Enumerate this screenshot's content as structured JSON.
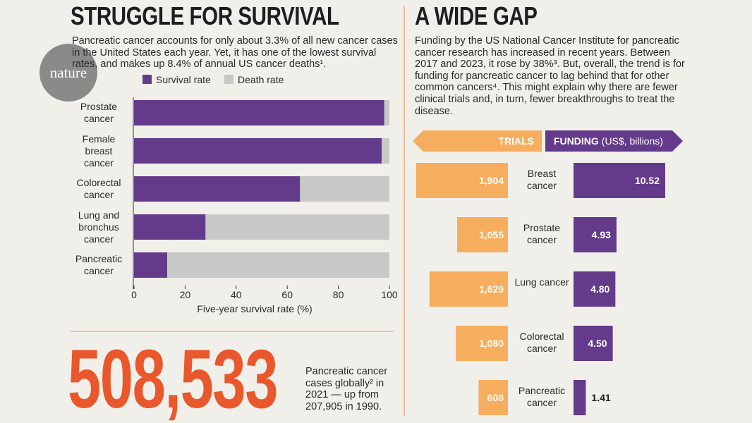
{
  "logo": "nature",
  "left": {
    "title": "STRUGGLE FOR SURVIVAL",
    "intro": "Pancreatic cancer accounts for only about 3.3% of all new cancer cases in the United States each year. Yet, it has one of the lowest survival rates, and makes up 8.4% of annual US cancer deaths¹."
  },
  "stat": {
    "number": "508,533",
    "text": "Pancreatic cancer cases globally² in 2021 — up from 207,905 in 1990."
  },
  "right": {
    "title": "A WIDE GAP",
    "intro": "Funding by the US National Cancer Institute for pancreatic cancer research has increased in recent years. Between 2017 and 2023, it rose by 38%³. But, overall, the trend is for funding for pancreatic cancer to lag behind that for other common cancers⁴. This might explain why there are fewer clinical trials and, in turn, fewer breakthroughs to treat the disease."
  },
  "chart_data": [
    {
      "type": "stacked-hbar",
      "categories": [
        "Prostate cancer",
        "Female breast cancer",
        "Colorectal cancer",
        "Lung and bronchus cancer",
        "Pancreatic cancer"
      ],
      "series": [
        {
          "name": "Survival rate",
          "color": "#643a8a",
          "values": [
            98,
            97,
            65,
            28,
            13
          ]
        },
        {
          "name": "Death rate",
          "color": "#c8c8c6",
          "values": [
            2,
            3,
            35,
            72,
            87
          ]
        }
      ],
      "xlim": [
        0,
        100
      ],
      "xticks": [
        0,
        20,
        40,
        60,
        80,
        100
      ],
      "xlabel": "Five-year survival rate (%)",
      "legend": "top"
    },
    {
      "type": "butterfly",
      "categories": [
        "Breast cancer",
        "Prostate cancer",
        "Lung cancer",
        "Colorectal cancer",
        "Pancreatic cancer"
      ],
      "series": [
        {
          "name": "TRIALS",
          "color": "#f7ad5e",
          "values": [
            1904,
            1055,
            1629,
            1080,
            608
          ],
          "value_labels": [
            "1,904",
            "1,055",
            "1,629",
            "1,080",
            "608"
          ]
        },
        {
          "name": "FUNDING",
          "unit": "(US$, billions)",
          "color": "#643a8a",
          "values": [
            10.52,
            4.93,
            4.8,
            4.5,
            1.41
          ],
          "value_labels": [
            "10.52",
            "4.93",
            "4.80",
            "4.50",
            "1.41"
          ]
        }
      ]
    }
  ]
}
